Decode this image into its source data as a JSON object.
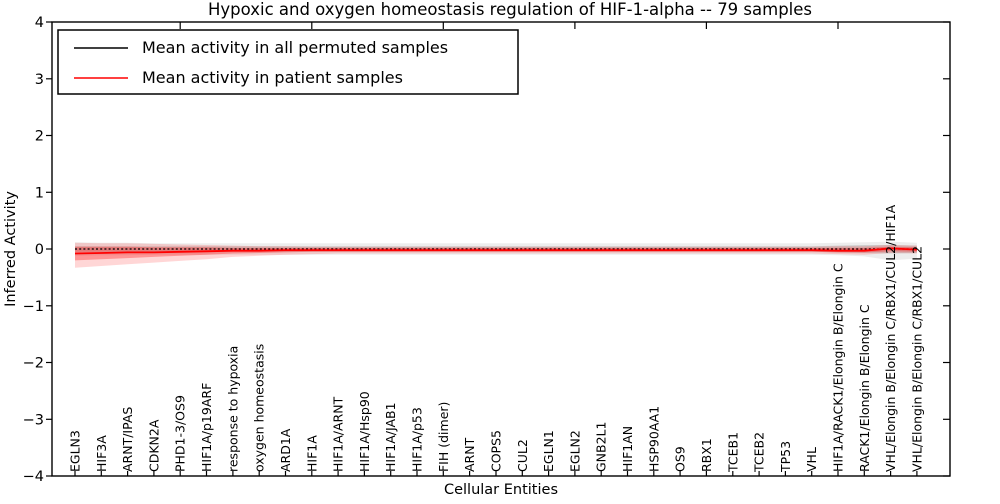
{
  "title": "Hypoxic and oxygen homeostasis regulation of HIF-1-alpha -- 79 samples",
  "axes": {
    "ylabel": "Inferred Activity",
    "xlabel": "Cellular Entities",
    "ylim": [
      -4,
      4
    ],
    "ytick_labels": [
      "4",
      "3",
      "2",
      "1",
      "0",
      "−1",
      "−2",
      "−3",
      "−4"
    ],
    "ytick_values": [
      4,
      3,
      2,
      1,
      0,
      -1,
      -2,
      -3,
      -4
    ],
    "top_tick_category_indexes": [
      4,
      9,
      14,
      19,
      24,
      29
    ]
  },
  "legend": {
    "items": [
      {
        "label": "Mean activity in all permuted samples",
        "color": "#000000"
      },
      {
        "label": "Mean activity in patient samples",
        "color": "#ff0000"
      }
    ]
  },
  "chart_data": {
    "type": "line",
    "title": "Hypoxic and oxygen homeostasis regulation of HIF-1-alpha -- 79 samples",
    "xlabel": "Cellular Entities",
    "ylabel": "Inferred Activity",
    "ylim": [
      -4,
      4
    ],
    "grid": false,
    "legend_position": "upper left",
    "categories": [
      "EGLN3",
      "HIF3A",
      "ARNT/IPAS",
      "CDKN2A",
      "PHD1-3/OS9",
      "HIF1A/p19ARF",
      "response to hypoxia",
      "oxygen homeostasis",
      "ARD1A",
      "HIF1A",
      "HIF1A/ARNT",
      "HIF1A/Hsp90",
      "HIF1A/JAB1",
      "HIF1A/p53",
      "FIH (dimer)",
      "ARNT",
      "COPS5",
      "CUL2",
      "EGLN1",
      "EGLN2",
      "GNB2L1",
      "HIF1AN",
      "HSP90AA1",
      "OS9",
      "RBX1",
      "TCEB1",
      "TCEB2",
      "TP53",
      "VHL",
      "HIF1A/RACK1/Elongin B/Elongin C",
      "RACK1/Elongin B/Elongin C",
      "VHL/Elongin B/Elongin C/RBX1/CUL2/HIF1A",
      "VHL/Elongin B/Elongin C/RBX1/CUL2"
    ],
    "series": [
      {
        "name": "Mean activity in all permuted samples",
        "color": "#000000",
        "dash": "2 2.2",
        "width": 1.3,
        "values": [
          0,
          0,
          0,
          0,
          0,
          0,
          0,
          0,
          0,
          0,
          0,
          0,
          0,
          0,
          0,
          0,
          0,
          0,
          0,
          0,
          0,
          0,
          0,
          0,
          0,
          0,
          0,
          0,
          0,
          0,
          0,
          0,
          0
        ]
      },
      {
        "name": "Mean activity in patient samples",
        "color": "#ff0000",
        "dash": "",
        "width": 1.8,
        "values": [
          -0.08,
          -0.07,
          -0.06,
          -0.06,
          -0.05,
          -0.04,
          -0.03,
          -0.03,
          -0.02,
          -0.02,
          -0.02,
          -0.02,
          -0.02,
          -0.02,
          -0.02,
          -0.02,
          -0.02,
          -0.02,
          -0.02,
          -0.02,
          -0.02,
          -0.02,
          -0.02,
          -0.02,
          -0.02,
          -0.02,
          -0.02,
          -0.02,
          -0.02,
          -0.03,
          -0.03,
          0.01,
          -0.01
        ]
      }
    ],
    "bands": [
      {
        "name": "permuted-outer-band",
        "color": "rgba(0,0,0,0.07)",
        "lo": [
          -0.12,
          -0.11,
          -0.11,
          -0.1,
          -0.1,
          -0.1,
          -0.1,
          -0.1,
          -0.1,
          -0.1,
          -0.1,
          -0.1,
          -0.1,
          -0.1,
          -0.1,
          -0.1,
          -0.1,
          -0.1,
          -0.1,
          -0.1,
          -0.1,
          -0.1,
          -0.1,
          -0.1,
          -0.1,
          -0.1,
          -0.1,
          -0.1,
          -0.1,
          -0.11,
          -0.13,
          -0.2,
          -0.17
        ],
        "hi": [
          0.12,
          0.11,
          0.11,
          0.1,
          0.1,
          0.1,
          0.1,
          0.1,
          0.1,
          0.1,
          0.1,
          0.1,
          0.1,
          0.1,
          0.1,
          0.1,
          0.1,
          0.1,
          0.1,
          0.1,
          0.1,
          0.1,
          0.1,
          0.1,
          0.1,
          0.1,
          0.1,
          0.1,
          0.1,
          0.11,
          0.12,
          0.13,
          0.11
        ]
      },
      {
        "name": "permuted-inner-band",
        "color": "rgba(0,0,0,0.13)",
        "lo": [
          -0.05,
          -0.05,
          -0.05,
          -0.05,
          -0.05,
          -0.05,
          -0.05,
          -0.05,
          -0.05,
          -0.05,
          -0.05,
          -0.05,
          -0.05,
          -0.05,
          -0.05,
          -0.05,
          -0.05,
          -0.05,
          -0.05,
          -0.05,
          -0.05,
          -0.05,
          -0.05,
          -0.05,
          -0.05,
          -0.05,
          -0.05,
          -0.05,
          -0.05,
          -0.06,
          -0.07,
          -0.08,
          -0.07
        ],
        "hi": [
          0.05,
          0.05,
          0.05,
          0.05,
          0.05,
          0.05,
          0.05,
          0.05,
          0.05,
          0.05,
          0.05,
          0.05,
          0.05,
          0.05,
          0.05,
          0.05,
          0.05,
          0.05,
          0.05,
          0.05,
          0.05,
          0.05,
          0.05,
          0.05,
          0.05,
          0.05,
          0.05,
          0.05,
          0.05,
          0.06,
          0.07,
          0.07,
          0.06
        ]
      },
      {
        "name": "patient-outer-band",
        "color": "rgba(255,0,0,0.16)",
        "lo": [
          -0.33,
          -0.3,
          -0.27,
          -0.24,
          -0.21,
          -0.18,
          -0.14,
          -0.12,
          -0.1,
          -0.09,
          -0.08,
          -0.08,
          -0.08,
          -0.08,
          -0.08,
          -0.08,
          -0.08,
          -0.08,
          -0.08,
          -0.08,
          -0.08,
          -0.08,
          -0.08,
          -0.08,
          -0.08,
          -0.08,
          -0.08,
          -0.08,
          -0.08,
          -0.09,
          -0.1,
          -0.07,
          -0.08
        ],
        "hi": [
          0.11,
          0.1,
          0.1,
          0.09,
          0.08,
          0.07,
          0.06,
          0.05,
          0.05,
          0.04,
          0.04,
          0.04,
          0.04,
          0.04,
          0.04,
          0.04,
          0.04,
          0.04,
          0.04,
          0.04,
          0.04,
          0.04,
          0.04,
          0.04,
          0.04,
          0.04,
          0.04,
          0.04,
          0.04,
          0.05,
          0.05,
          0.07,
          0.06
        ]
      },
      {
        "name": "patient-inner-band",
        "color": "rgba(255,0,0,0.30)",
        "lo": [
          -0.2,
          -0.18,
          -0.16,
          -0.14,
          -0.12,
          -0.1,
          -0.08,
          -0.07,
          -0.06,
          -0.05,
          -0.05,
          -0.05,
          -0.05,
          -0.05,
          -0.05,
          -0.05,
          -0.05,
          -0.05,
          -0.05,
          -0.05,
          -0.05,
          -0.05,
          -0.05,
          -0.05,
          -0.05,
          -0.05,
          -0.05,
          -0.05,
          -0.05,
          -0.06,
          -0.06,
          -0.04,
          -0.05
        ],
        "hi": [
          0.04,
          0.04,
          0.04,
          0.03,
          0.03,
          0.03,
          0.02,
          0.02,
          0.02,
          0.02,
          0.02,
          0.02,
          0.02,
          0.02,
          0.02,
          0.02,
          0.02,
          0.02,
          0.02,
          0.02,
          0.02,
          0.02,
          0.02,
          0.02,
          0.02,
          0.02,
          0.02,
          0.02,
          0.02,
          0.02,
          0.02,
          0.04,
          0.03
        ]
      }
    ]
  }
}
